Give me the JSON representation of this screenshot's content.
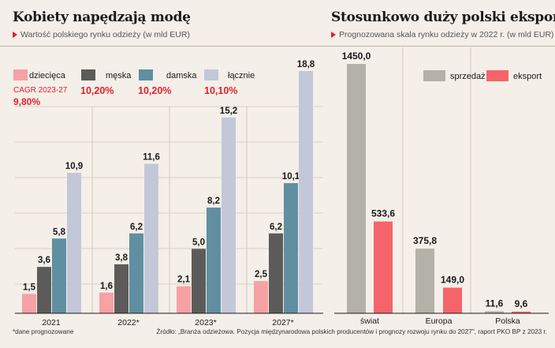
{
  "left": {
    "title": "Kobiety napędzają modę",
    "subtitle": "Wartość polskiego rynku odzieży (w mld EUR)",
    "cagr_label": "CAGR 2023-27",
    "footnote": "*dane prognozowane"
  },
  "right": {
    "title": "Stosunkowo duży polski eksport",
    "subtitle": "Prognozowana skala rynku odzieży w 2022 r. (w mld EUR)"
  },
  "source": "Źródło: „Branża odzieżowa. Pozycja międzynarodowa polskich producentów i prognozy rozwoju rynku do 2027\", raport PKO BP z 2023 r.",
  "colors": {
    "accent": "#e3202b",
    "dziecieca": "#f6a1a4",
    "meska": "#5d5b59",
    "damska": "#5f8fa0",
    "lacznie": "#c3c8d8",
    "sprzedaz": "#b3b1a8",
    "eksport": "#f4646a"
  },
  "chart_data": [
    {
      "type": "bar",
      "title": "Kobiety napędzają modę",
      "categories": [
        "2021",
        "2022*",
        "2023*",
        "2027*"
      ],
      "series": [
        {
          "name": "dziecięca",
          "color": "#f6a1a4",
          "values": [
            1.5,
            1.6,
            2.1,
            2.5
          ],
          "labels": [
            "1,5",
            "1,6",
            "2,1",
            "2,5"
          ],
          "cagr": "9,80%"
        },
        {
          "name": "męska",
          "color": "#5d5b59",
          "values": [
            3.6,
            3.8,
            5.0,
            6.2
          ],
          "labels": [
            "3,6",
            "3,8",
            "5,0",
            "6,2"
          ],
          "cagr": "10,20%"
        },
        {
          "name": "damska",
          "color": "#5f8fa0",
          "values": [
            5.8,
            6.2,
            8.2,
            10.1
          ],
          "labels": [
            "5,8",
            "6,2",
            "8,2",
            "10,1"
          ],
          "cagr": "10,20%"
        },
        {
          "name": "łącznie",
          "color": "#c3c8d8",
          "values": [
            10.9,
            11.6,
            15.2,
            18.8
          ],
          "labels": [
            "10,9",
            "11,6",
            "15,2",
            "18,8"
          ],
          "cagr": "10,10%"
        }
      ],
      "ylim": [
        0,
        19.5
      ],
      "legend": "top"
    },
    {
      "type": "bar",
      "title": "Stosunkowo duży polski eksport",
      "categories": [
        "świat",
        "Europa",
        "Polska"
      ],
      "series": [
        {
          "name": "sprzedaż",
          "color": "#b3b1a8",
          "values": [
            1450.0,
            375.8,
            11.6
          ],
          "labels": [
            "1450,0",
            "375,8",
            "11,6"
          ]
        },
        {
          "name": "eksport",
          "color": "#f4646a",
          "values": [
            533.6,
            149.0,
            9.6
          ],
          "labels": [
            "533,6",
            "149,0",
            "9,6"
          ]
        }
      ],
      "ylim": [
        0,
        1450
      ],
      "legend": "top-right"
    }
  ]
}
